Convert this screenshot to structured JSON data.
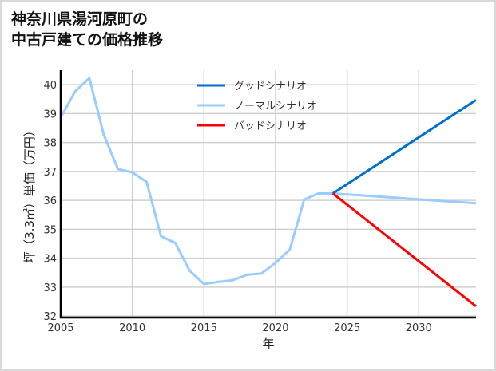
{
  "chart_data": {
    "type": "line",
    "title": "神奈川県湯河原町の\n中古戸建ての価格推移",
    "xlabel": "年",
    "ylabel": "坪（3.3㎡）単価（万円）",
    "xlim": [
      2005,
      2034
    ],
    "ylim": [
      31.95,
      40.5
    ],
    "xticks": [
      2005,
      2010,
      2015,
      2020,
      2025,
      2030
    ],
    "yticks": [
      32,
      33,
      34,
      35,
      36,
      37,
      38,
      39,
      40
    ],
    "grid": true,
    "legend_position": "top-center",
    "series": [
      {
        "name": "グッドシナリオ",
        "color": "#0070cc",
        "x": [
          2024,
          2034
        ],
        "y": [
          36.24,
          39.47
        ]
      },
      {
        "name": "ノーマルシナリオ",
        "color": "#99ccff",
        "x": [
          2005,
          2006,
          2007,
          2008,
          2009,
          2010,
          2011,
          2012,
          2013,
          2014,
          2015,
          2016,
          2017,
          2018,
          2019,
          2020,
          2021,
          2022,
          2023,
          2024,
          2034
        ],
        "y": [
          38.87,
          39.76,
          40.23,
          38.28,
          37.08,
          36.97,
          36.64,
          34.76,
          34.53,
          33.57,
          33.11,
          33.18,
          33.24,
          33.43,
          33.47,
          33.84,
          34.3,
          36.03,
          36.24,
          36.24,
          35.9
        ]
      },
      {
        "name": "バッドシナリオ",
        "color": "#ff0000",
        "x": [
          2024,
          2034
        ],
        "y": [
          36.24,
          32.34
        ]
      }
    ]
  }
}
